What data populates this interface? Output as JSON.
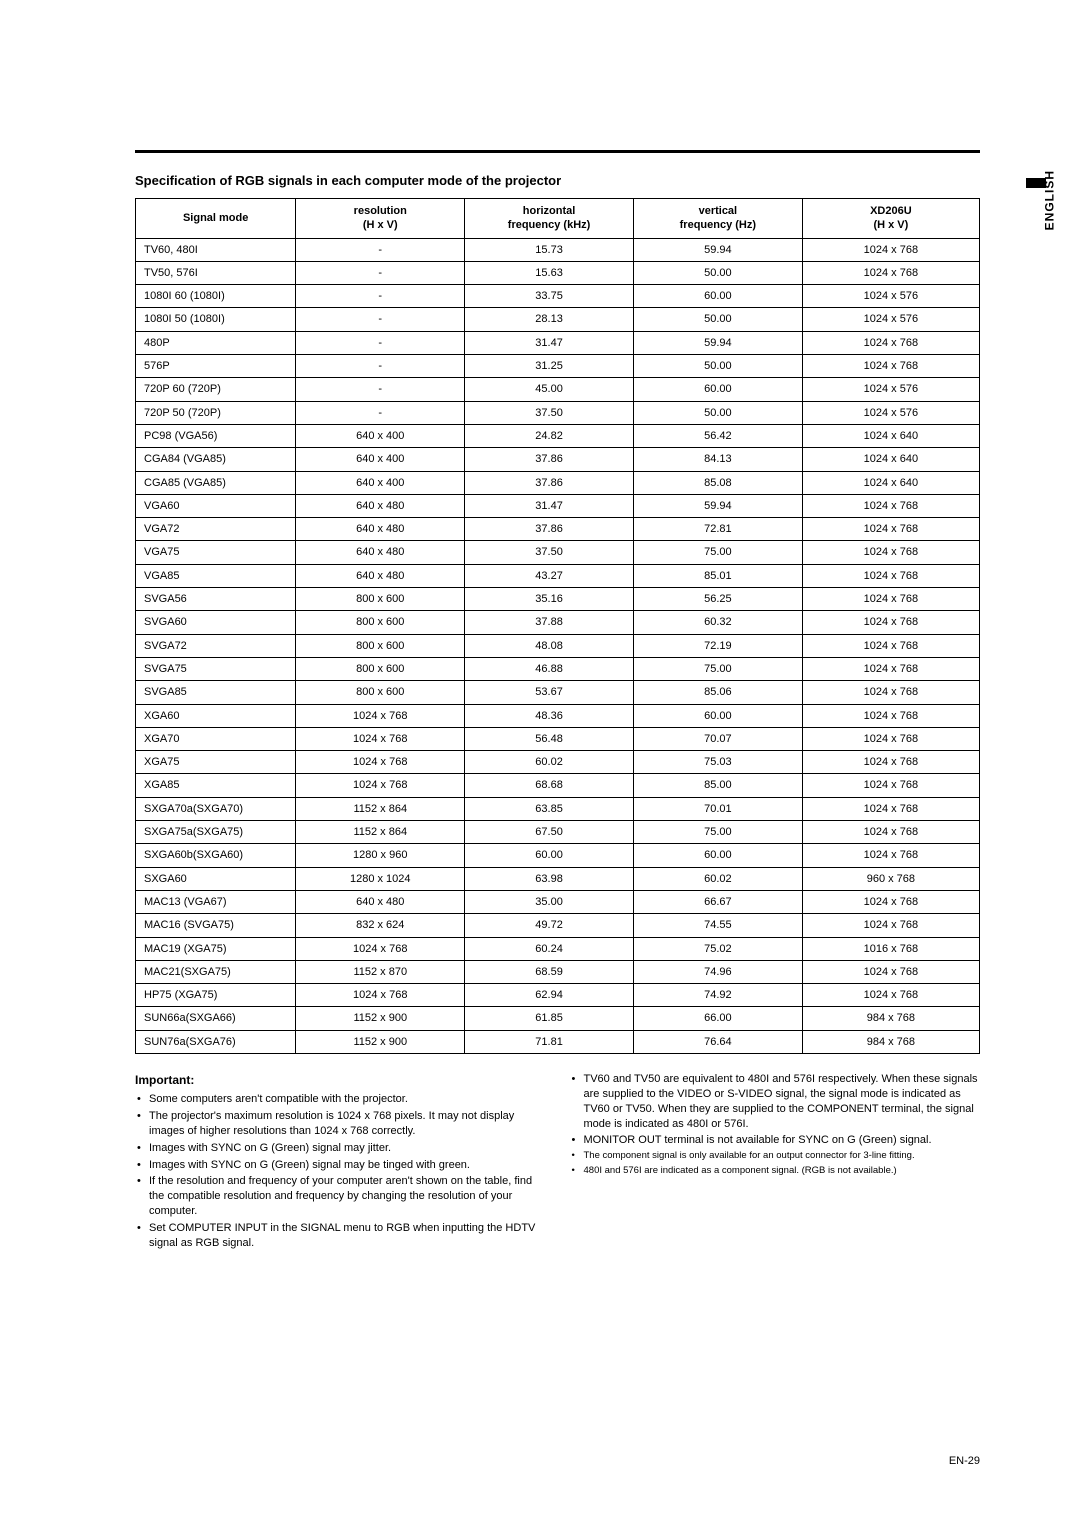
{
  "language_label": "ENGLISH",
  "page_number": "EN-29",
  "section_title": "Specification of RGB signals in each computer mode of the projector",
  "table": {
    "headers": {
      "signal_mode": "Signal mode",
      "resolution": "resolution\n(H x V)",
      "horizontal": "horizontal\nfrequency (kHz)",
      "vertical": "vertical\nfrequency (Hz)",
      "xd206u": "XD206U\n(H x V)"
    },
    "rows": [
      {
        "mode": "TV60, 480I",
        "res": "-",
        "h": "15.73",
        "v": "59.94",
        "out": "1024 x 768"
      },
      {
        "mode": "TV50, 576I",
        "res": "-",
        "h": "15.63",
        "v": "50.00",
        "out": "1024 x 768"
      },
      {
        "mode": "1080I 60 (1080I)",
        "res": "-",
        "h": "33.75",
        "v": "60.00",
        "out": "1024 x 576"
      },
      {
        "mode": "1080I 50 (1080I)",
        "res": "-",
        "h": "28.13",
        "v": "50.00",
        "out": "1024 x 576"
      },
      {
        "mode": "480P",
        "res": "-",
        "h": "31.47",
        "v": "59.94",
        "out": "1024 x 768"
      },
      {
        "mode": "576P",
        "res": "-",
        "h": "31.25",
        "v": "50.00",
        "out": "1024 x 768"
      },
      {
        "mode": "720P 60 (720P)",
        "res": "-",
        "h": "45.00",
        "v": "60.00",
        "out": "1024 x 576"
      },
      {
        "mode": "720P 50 (720P)",
        "res": "-",
        "h": "37.50",
        "v": "50.00",
        "out": "1024 x 576"
      },
      {
        "mode": "PC98 (VGA56)",
        "res": "640 x 400",
        "h": "24.82",
        "v": "56.42",
        "out": "1024 x 640"
      },
      {
        "mode": "CGA84 (VGA85)",
        "res": "640 x 400",
        "h": "37.86",
        "v": "84.13",
        "out": "1024 x 640"
      },
      {
        "mode": "CGA85 (VGA85)",
        "res": "640 x 400",
        "h": "37.86",
        "v": "85.08",
        "out": "1024 x 640"
      },
      {
        "mode": "VGA60",
        "res": "640 x 480",
        "h": "31.47",
        "v": "59.94",
        "out": "1024 x 768"
      },
      {
        "mode": "VGA72",
        "res": "640 x 480",
        "h": "37.86",
        "v": "72.81",
        "out": "1024 x 768"
      },
      {
        "mode": "VGA75",
        "res": "640 x 480",
        "h": "37.50",
        "v": "75.00",
        "out": "1024 x 768"
      },
      {
        "mode": "VGA85",
        "res": "640 x 480",
        "h": "43.27",
        "v": "85.01",
        "out": "1024 x 768"
      },
      {
        "mode": "SVGA56",
        "res": "800 x 600",
        "h": "35.16",
        "v": "56.25",
        "out": "1024 x 768"
      },
      {
        "mode": "SVGA60",
        "res": "800 x 600",
        "h": "37.88",
        "v": "60.32",
        "out": "1024 x 768"
      },
      {
        "mode": "SVGA72",
        "res": "800 x 600",
        "h": "48.08",
        "v": "72.19",
        "out": "1024 x 768"
      },
      {
        "mode": "SVGA75",
        "res": "800 x 600",
        "h": "46.88",
        "v": "75.00",
        "out": "1024 x 768"
      },
      {
        "mode": "SVGA85",
        "res": "800 x 600",
        "h": "53.67",
        "v": "85.06",
        "out": "1024 x 768"
      },
      {
        "mode": "XGA60",
        "res": "1024 x 768",
        "h": "48.36",
        "v": "60.00",
        "out": "1024 x 768"
      },
      {
        "mode": "XGA70",
        "res": "1024 x 768",
        "h": "56.48",
        "v": "70.07",
        "out": "1024 x 768"
      },
      {
        "mode": "XGA75",
        "res": "1024 x 768",
        "h": "60.02",
        "v": "75.03",
        "out": "1024 x 768"
      },
      {
        "mode": "XGA85",
        "res": "1024 x 768",
        "h": "68.68",
        "v": "85.00",
        "out": "1024 x 768"
      },
      {
        "mode": "SXGA70a(SXGA70)",
        "res": "1152 x 864",
        "h": "63.85",
        "v": "70.01",
        "out": "1024 x 768"
      },
      {
        "mode": "SXGA75a(SXGA75)",
        "res": "1152 x 864",
        "h": "67.50",
        "v": "75.00",
        "out": "1024 x 768"
      },
      {
        "mode": "SXGA60b(SXGA60)",
        "res": "1280 x 960",
        "h": "60.00",
        "v": "60.00",
        "out": "1024 x 768"
      },
      {
        "mode": "SXGA60",
        "res": "1280 x 1024",
        "h": "63.98",
        "v": "60.02",
        "out": "960 x 768"
      },
      {
        "mode": "MAC13 (VGA67)",
        "res": "640 x 480",
        "h": "35.00",
        "v": "66.67",
        "out": "1024 x 768"
      },
      {
        "mode": "MAC16 (SVGA75)",
        "res": "832 x 624",
        "h": "49.72",
        "v": "74.55",
        "out": "1024 x 768"
      },
      {
        "mode": "MAC19 (XGA75)",
        "res": "1024 x 768",
        "h": "60.24",
        "v": "75.02",
        "out": "1016 x 768"
      },
      {
        "mode": "MAC21(SXGA75)",
        "res": "1152 x 870",
        "h": "68.59",
        "v": "74.96",
        "out": "1024 x 768"
      },
      {
        "mode": "HP75 (XGA75)",
        "res": "1024 x 768",
        "h": "62.94",
        "v": "74.92",
        "out": "1024 x 768"
      },
      {
        "mode": "SUN66a(SXGA66)",
        "res": "1152 x 900",
        "h": "61.85",
        "v": "66.00",
        "out": "984 x 768"
      },
      {
        "mode": "SUN76a(SXGA76)",
        "res": "1152 x 900",
        "h": "71.81",
        "v": "76.64",
        "out": "984 x 768"
      }
    ],
    "column_widths": [
      "19%",
      "20%",
      "20%",
      "20%",
      "21%"
    ]
  },
  "important_label": "Important:",
  "notes_left": [
    {
      "text": "Some computers aren't compatible with the projector.",
      "small": false
    },
    {
      "text": "The projector's maximum resolution is 1024 x 768 pixels. It may not display images of higher resolutions than 1024 x 768 correctly.",
      "small": false
    },
    {
      "text": "Images with SYNC on G (Green) signal may jitter.",
      "small": false
    },
    {
      "text": "Images with SYNC on G (Green) signal may be tinged with green.",
      "small": false
    },
    {
      "text": "If the resolution and frequency of your computer aren't shown on the table, find the compatible resolution and frequency by changing the resolution of your computer.",
      "small": false
    },
    {
      "text": "Set COMPUTER INPUT in the SIGNAL menu to RGB when inputting the HDTV signal as RGB signal.",
      "small": false
    }
  ],
  "notes_right": [
    {
      "text": "TV60 and TV50 are equivalent to 480I and 576I respectively. When these signals are supplied to the VIDEO or S-VIDEO signal, the signal mode is indicated as TV60 or TV50. When they are supplied to the COMPONENT terminal, the signal mode is indicated as 480I or 576I.",
      "small": false
    },
    {
      "text": "MONITOR OUT terminal is not available for SYNC on G (Green) signal.",
      "small": false
    },
    {
      "text": "The component signal is only available for an output connector for 3-line fitting.",
      "small": true
    },
    {
      "text": "480I and 576I are indicated as a component signal. (RGB is not available.)",
      "small": true
    }
  ]
}
